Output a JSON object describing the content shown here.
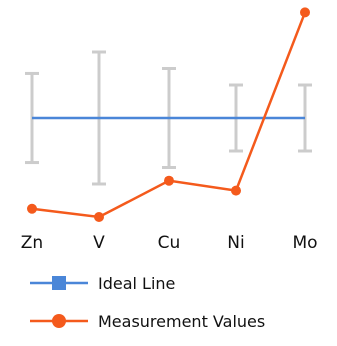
{
  "chart_data": {
    "type": "line",
    "categories": [
      "Zn",
      "V",
      "Cu",
      "Ni",
      "Mo"
    ],
    "series": [
      {
        "name": "Ideal Line",
        "values": [
          0,
          0,
          0,
          0,
          0
        ],
        "color": "#4a86d8",
        "marker": "square"
      },
      {
        "name": "Measurement Values",
        "values": [
          -2.75,
          -3.0,
          -1.9,
          -2.2,
          3.2
        ],
        "color": "#f45a1c",
        "marker": "circle"
      }
    ],
    "error_bars": {
      "color": "#cccccc",
      "low": [
        -1.35,
        -2.0,
        -1.5,
        -1.0,
        -1.0
      ],
      "high": [
        1.35,
        2.0,
        1.5,
        1.0,
        1.0
      ]
    },
    "ylim": [
      -3.5,
      3.5
    ],
    "grid": false,
    "legend_position": "bottom-left",
    "title": "",
    "xlabel": "",
    "ylabel": ""
  }
}
